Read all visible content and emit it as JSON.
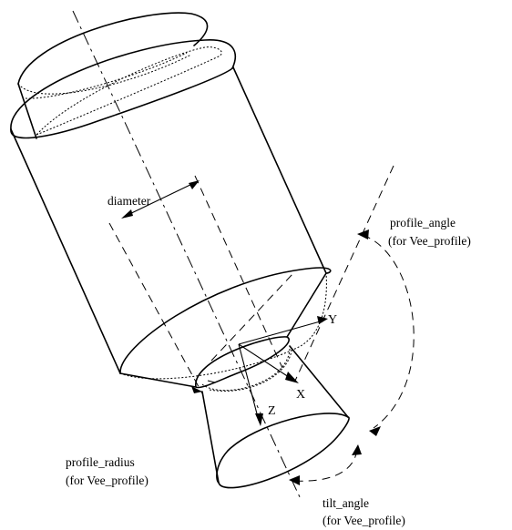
{
  "labels": {
    "diameter": "diameter",
    "profile_angle": "profile_angle",
    "profile_angle_note": "(for Vee_profile)",
    "profile_radius": "profile_radius",
    "profile_radius_note": "(for Vee_profile)",
    "tilt_angle": "tilt_angle",
    "tilt_angle_note": "(for Vee_profile)"
  },
  "axes": {
    "x": "X",
    "y": "Y",
    "z": "Z"
  }
}
